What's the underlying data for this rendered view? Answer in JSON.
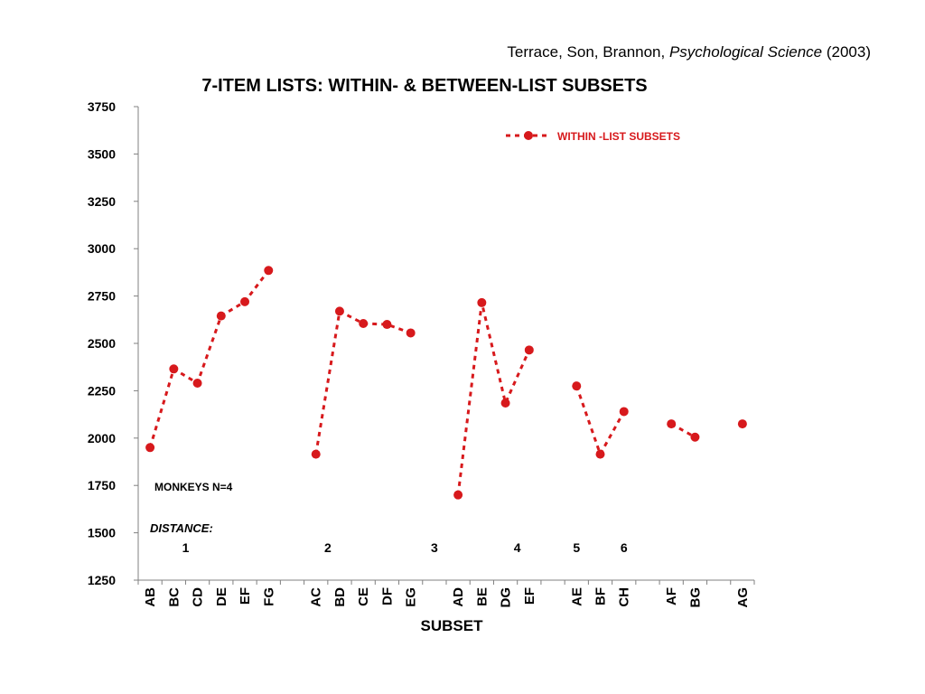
{
  "citation": {
    "authors": "Terrace, Son, Brannon,",
    "journal": "Psychological Science",
    "year": "(2003)"
  },
  "chart_data": {
    "type": "line",
    "title": "7-ITEM LISTS: WITHIN- & BETWEEN-LIST SUBSETS",
    "xlabel": "SUBSET",
    "ylabel": "",
    "ylim": [
      1250,
      3750
    ],
    "yticks": [
      1250,
      1500,
      1750,
      2000,
      2250,
      2500,
      2750,
      3000,
      3250,
      3500,
      3750
    ],
    "categories": [
      "AB",
      "BC",
      "CD",
      "DE",
      "EF",
      "FG",
      "",
      "AC",
      "BD",
      "CE",
      "DF",
      "EG",
      "",
      "AD",
      "BE",
      "DG",
      "EF",
      "",
      "AE",
      "BF",
      "CH",
      "",
      "AF",
      "BG",
      "",
      "AG"
    ],
    "series": [
      {
        "name": "WITHIN -LIST SUBSETS",
        "color": "#d7191c",
        "segments": [
          [
            {
              "x": "AB",
              "y": 1950
            },
            {
              "x": "BC",
              "y": 2365
            },
            {
              "x": "CD",
              "y": 2290
            },
            {
              "x": "DE",
              "y": 2645
            },
            {
              "x": "EF",
              "y": 2720
            },
            {
              "x": "FG",
              "y": 2885
            }
          ],
          [
            {
              "x": "AC",
              "y": 1915
            },
            {
              "x": "BD",
              "y": 2670
            },
            {
              "x": "CE",
              "y": 2605
            },
            {
              "x": "DF",
              "y": 2600
            },
            {
              "x": "EG",
              "y": 2555
            }
          ],
          [
            {
              "x": "AD",
              "y": 1700
            },
            {
              "x": "BE",
              "y": 2715
            },
            {
              "x": "DG",
              "y": 2185
            },
            {
              "x": "EF",
              "y": 2465
            }
          ],
          [
            {
              "x": "AE",
              "y": 2275
            },
            {
              "x": "BF",
              "y": 1915
            },
            {
              "x": "CH",
              "y": 2140
            }
          ],
          [
            {
              "x": "AF",
              "y": 2075
            },
            {
              "x": "BG",
              "y": 2005
            }
          ],
          [
            {
              "x": "AG",
              "y": 2075
            }
          ]
        ]
      }
    ],
    "legend_position": "top-right",
    "annotations": {
      "monkeys": "MONKEYS N=4",
      "distance_label": "DISTANCE:",
      "distances": [
        "1",
        "2",
        "3",
        "4",
        "5",
        "6"
      ]
    }
  }
}
